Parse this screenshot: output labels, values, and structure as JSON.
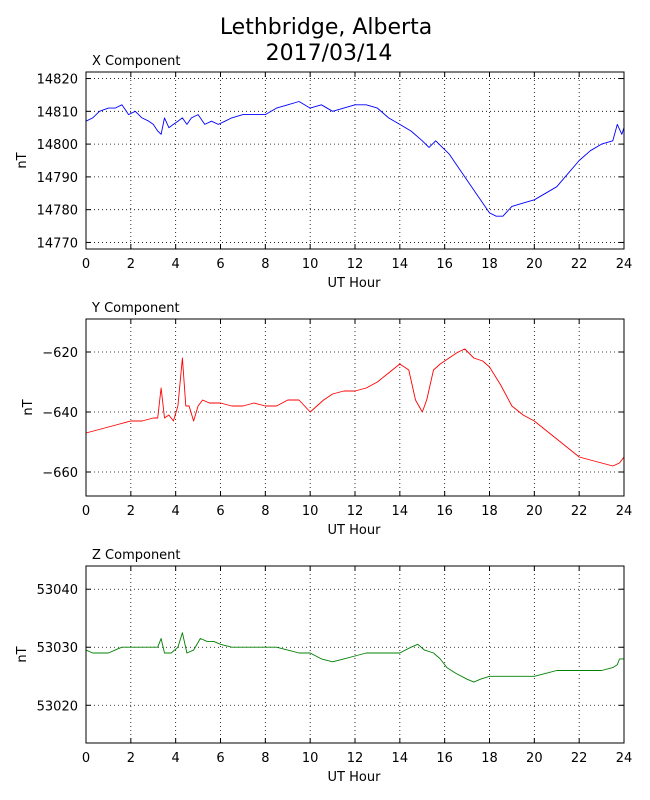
{
  "figure": {
    "title_line1": "Lethbridge, Alberta",
    "title_line2": "2017/03/14"
  },
  "chart_data": [
    {
      "type": "line",
      "title": "X Component",
      "xlabel": "UT Hour",
      "ylabel": "nT",
      "xlim": [
        0,
        24
      ],
      "ylim": [
        14768,
        14822
      ],
      "xticks": [
        0,
        2,
        4,
        6,
        8,
        10,
        12,
        14,
        16,
        18,
        20,
        22,
        24
      ],
      "yticks": [
        14770,
        14780,
        14790,
        14800,
        14810,
        14820
      ],
      "grid": true,
      "color": "#0000ff",
      "x": [
        0,
        0.3,
        0.6,
        1.0,
        1.3,
        1.6,
        1.9,
        2.2,
        2.5,
        2.8,
        3.0,
        3.2,
        3.35,
        3.5,
        3.7,
        3.9,
        4.1,
        4.3,
        4.5,
        4.7,
        5.0,
        5.3,
        5.6,
        5.9,
        6.2,
        6.5,
        7.0,
        7.5,
        8.0,
        8.5,
        9.0,
        9.5,
        10.0,
        10.5,
        11.0,
        11.5,
        12.0,
        12.5,
        13.0,
        13.5,
        14.0,
        14.5,
        15.0,
        15.3,
        15.6,
        15.9,
        16.2,
        16.6,
        17.0,
        17.5,
        18.0,
        18.3,
        18.6,
        19.0,
        19.5,
        20.0,
        20.5,
        21.0,
        21.5,
        22.0,
        22.5,
        23.0,
        23.5,
        23.7,
        23.9,
        24.0
      ],
      "y": [
        14807,
        14808,
        14810,
        14811,
        14811,
        14812,
        14809,
        14810,
        14808,
        14807,
        14806,
        14804,
        14803,
        14808,
        14805,
        14806,
        14807,
        14808,
        14806,
        14808,
        14809,
        14806,
        14807,
        14806,
        14807,
        14808,
        14809,
        14809,
        14809,
        14811,
        14812,
        14813,
        14811,
        14812,
        14810,
        14811,
        14812,
        14812,
        14811,
        14808,
        14806,
        14804,
        14801,
        14799,
        14801,
        14799,
        14797,
        14793,
        14789,
        14784,
        14779,
        14778,
        14778,
        14781,
        14782,
        14783,
        14785,
        14787,
        14791,
        14795,
        14798,
        14800,
        14801,
        14806,
        14803,
        14805
      ]
    },
    {
      "type": "line",
      "title": "Y Component",
      "xlabel": "UT Hour",
      "ylabel": "nT",
      "xlim": [
        0,
        24
      ],
      "ylim": [
        -668,
        -609
      ],
      "xticks": [
        0,
        2,
        4,
        6,
        8,
        10,
        12,
        14,
        16,
        18,
        20,
        22,
        24
      ],
      "yticks": [
        -660,
        -640,
        -620
      ],
      "grid": true,
      "color": "#ff0000",
      "x": [
        0,
        0.5,
        1.0,
        1.5,
        2.0,
        2.5,
        3.0,
        3.2,
        3.35,
        3.5,
        3.7,
        3.9,
        4.1,
        4.3,
        4.45,
        4.6,
        4.8,
        5.0,
        5.2,
        5.5,
        6.0,
        6.5,
        7.0,
        7.5,
        8.0,
        8.5,
        9.0,
        9.5,
        10.0,
        10.3,
        10.6,
        11.0,
        11.5,
        12.0,
        12.5,
        13.0,
        13.5,
        14.0,
        14.4,
        14.7,
        15.0,
        15.2,
        15.5,
        15.8,
        16.2,
        16.6,
        16.9,
        17.3,
        17.7,
        18.0,
        18.5,
        19.0,
        19.5,
        20.0,
        20.5,
        21.0,
        21.5,
        22.0,
        22.5,
        23.0,
        23.5,
        23.8,
        24.0
      ],
      "y": [
        -647,
        -646,
        -645,
        -644,
        -643,
        -643,
        -642,
        -642,
        -632,
        -642,
        -641,
        -643,
        -638,
        -622,
        -638,
        -638,
        -643,
        -638,
        -636,
        -637,
        -637,
        -638,
        -638,
        -637,
        -638,
        -638,
        -636,
        -636,
        -640,
        -638,
        -636,
        -634,
        -633,
        -633,
        -632,
        -630,
        -627,
        -624,
        -626,
        -636,
        -640,
        -636,
        -626,
        -624,
        -622,
        -620,
        -619,
        -622,
        -623,
        -625,
        -631,
        -638,
        -641,
        -643,
        -646,
        -649,
        -652,
        -655,
        -656,
        -657,
        -658,
        -657,
        -655
      ]
    },
    {
      "type": "line",
      "title": "Z Component",
      "xlabel": "UT Hour",
      "ylabel": "nT",
      "xlim": [
        0,
        24
      ],
      "ylim": [
        53013.5,
        53044
      ],
      "xticks": [
        0,
        2,
        4,
        6,
        8,
        10,
        12,
        14,
        16,
        18,
        20,
        22,
        24
      ],
      "yticks": [
        53020,
        53030,
        53040
      ],
      "grid": true,
      "color": "#008000",
      "x": [
        0,
        0.3,
        0.6,
        1.0,
        1.3,
        1.6,
        2.0,
        2.5,
        3.0,
        3.2,
        3.35,
        3.5,
        3.8,
        4.1,
        4.3,
        4.5,
        4.8,
        5.1,
        5.4,
        5.7,
        6.0,
        6.5,
        7.0,
        7.5,
        8.0,
        8.5,
        9.0,
        9.5,
        10.0,
        10.5,
        11.0,
        11.5,
        12.0,
        12.5,
        13.0,
        13.5,
        14.0,
        14.5,
        14.8,
        15.1,
        15.5,
        15.8,
        16.1,
        16.5,
        17.0,
        17.3,
        17.6,
        18.0,
        18.5,
        19.0,
        19.5,
        20.0,
        20.5,
        21.0,
        21.5,
        22.0,
        22.5,
        23.0,
        23.5,
        23.7,
        23.8,
        24.0
      ],
      "y": [
        53029.5,
        53029,
        53029,
        53029,
        53029.5,
        53030,
        53030,
        53030,
        53030,
        53030,
        53031.5,
        53029,
        53029,
        53030,
        53032.5,
        53029,
        53029.5,
        53031.5,
        53031,
        53031,
        53030.5,
        53030,
        53030,
        53030,
        53030,
        53030,
        53029.5,
        53029,
        53029,
        53028,
        53027.5,
        53028,
        53028.5,
        53029,
        53029,
        53029,
        53029,
        53030,
        53030.5,
        53029.5,
        53029,
        53028,
        53026.5,
        53025.5,
        53024.5,
        53024,
        53024.5,
        53025,
        53025,
        53025,
        53025,
        53025,
        53025.5,
        53026,
        53026,
        53026,
        53026,
        53026,
        53026.5,
        53027,
        53028,
        53028
      ]
    }
  ]
}
